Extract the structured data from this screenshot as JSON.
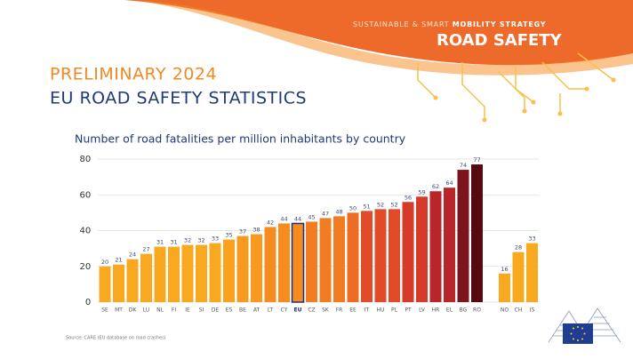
{
  "header": {
    "strategy_light": "SUSTAINABLE & SMART",
    "strategy_bold": "MOBILITY STRATEGY",
    "brand": "ROAD SAFETY",
    "kicker": "PRELIMINARY 2024",
    "headline": "EU ROAD SAFETY STATISTICS"
  },
  "chart_data": {
    "type": "bar",
    "title": "Number of road fatalities per million inhabitants by country",
    "categories": [
      "SE",
      "MT",
      "DK",
      "LU",
      "NL",
      "FI",
      "IE",
      "SI",
      "DE",
      "ES",
      "BE",
      "AT",
      "LT",
      "CY",
      "EU",
      "CZ",
      "SK",
      "FR",
      "EE",
      "IT",
      "HU",
      "PL",
      "PT",
      "LV",
      "HR",
      "EL",
      "BG",
      "RO",
      null,
      "NO",
      "CH",
      "IS"
    ],
    "values": [
      20,
      21,
      24,
      27,
      31,
      31,
      32,
      32,
      33,
      35,
      37,
      38,
      42,
      44,
      44,
      45,
      47,
      48,
      50,
      51,
      52,
      52,
      56,
      59,
      62,
      64,
      74,
      77,
      null,
      16,
      28,
      33
    ],
    "colors": [
      "#f9a91f",
      "#f9a91f",
      "#f9a91f",
      "#f9a91f",
      "#f9a91f",
      "#f9a91f",
      "#f9a91f",
      "#f9a91f",
      "#f9a91f",
      "#f9a21e",
      "#f89a1f",
      "#f89a1f",
      "#f68c20",
      "#f68c20",
      "#f68c20",
      "#f27c22",
      "#f27c22",
      "#f27c22",
      "#ef6c24",
      "#e24b28",
      "#e24b28",
      "#e24b28",
      "#d63b2a",
      "#d63b2a",
      "#b8262a",
      "#b8262a",
      "#7c151b",
      "#560a10",
      null,
      "#f9a91f",
      "#f9a91f",
      "#f9a91f"
    ],
    "highlight": "EU",
    "highlight_color": "#1f2f7a",
    "ylim": [
      0,
      80
    ],
    "yticks": [
      0,
      20,
      40,
      60,
      80
    ],
    "grid": true,
    "source": "Source: CARE (EU database on road crashes)"
  }
}
